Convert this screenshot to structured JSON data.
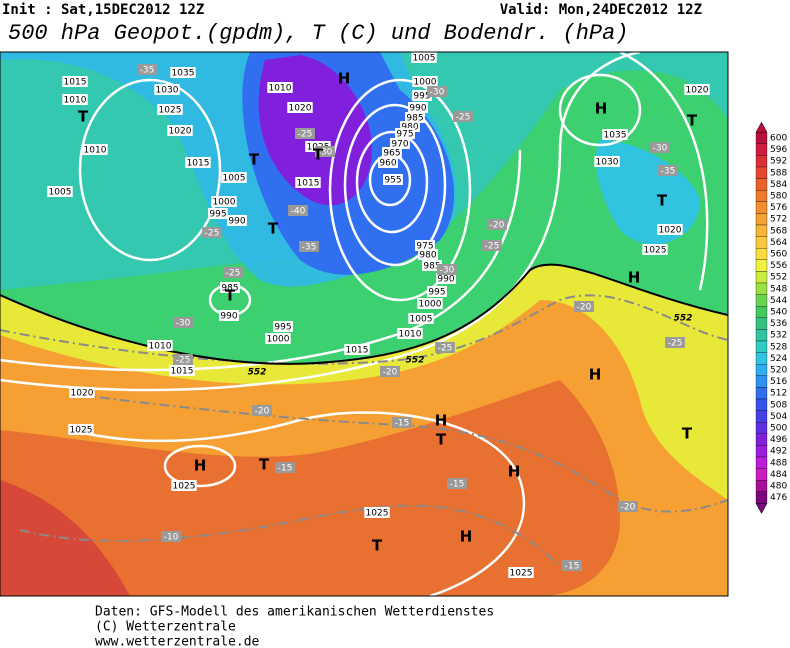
{
  "header": {
    "init": "Init : Sat,15DEC2012 12Z",
    "valid": "Valid: Mon,24DEC2012 12Z",
    "title": "500 hPa Geopot.(gpdm), T (C) und Bodendr. (hPa)"
  },
  "map": {
    "isobar_labels": [
      "1015",
      "1010",
      "1035",
      "1030",
      "1025",
      "1020",
      "1015",
      "1010",
      "1005",
      "1005",
      "1000",
      "995",
      "990",
      "1010",
      "1020",
      "1025",
      "1015",
      "1005",
      "1000",
      "995",
      "990",
      "985",
      "980",
      "975",
      "970",
      "965",
      "960",
      "955",
      "975",
      "980",
      "985",
      "990",
      "995",
      "1000",
      "1005",
      "1010",
      "1015",
      "985",
      "990",
      "995",
      "1000",
      "1010",
      "1015",
      "1020",
      "1025",
      "1025",
      "1025",
      "1025",
      "1035",
      "1030",
      "1020",
      "1025",
      "1020"
    ],
    "isotherm_labels": [
      "-35",
      "-30",
      "-25",
      "-25",
      "-30",
      "-40",
      "-25",
      "-35",
      "-25",
      "-30",
      "-25",
      "-20",
      "-25",
      "-30",
      "-20",
      "-25",
      "-20",
      "-20",
      "-15",
      "-15",
      "-15",
      "-10",
      "-15",
      "-20",
      "-30",
      "-35",
      "-25"
    ],
    "height_labels": [
      "552",
      "552",
      "552"
    ],
    "centers": [
      "H",
      "H",
      "T",
      "T",
      "T",
      "T",
      "T",
      "T",
      "T",
      "H",
      "H",
      "H",
      "T",
      "H",
      "H",
      "T",
      "T",
      "H",
      "T"
    ]
  },
  "colorbar": {
    "ticks": [
      600,
      596,
      592,
      588,
      584,
      580,
      576,
      572,
      568,
      564,
      560,
      556,
      552,
      548,
      544,
      540,
      536,
      532,
      528,
      524,
      520,
      516,
      512,
      508,
      504,
      500,
      496,
      492,
      488,
      484,
      480,
      476
    ],
    "colors": [
      "#b8103c",
      "#cc1c40",
      "#dc3038",
      "#e44830",
      "#ec602c",
      "#f0782c",
      "#f48c30",
      "#f6a034",
      "#f8b43a",
      "#f8c840",
      "#f8dc40",
      "#f0f040",
      "#c8ec40",
      "#98e044",
      "#68d450",
      "#44c860",
      "#34c080",
      "#30c4a0",
      "#30ccc0",
      "#30c4e0",
      "#30acf0",
      "#3090f0",
      "#3070f0",
      "#3454ec",
      "#4440e8",
      "#6030e0",
      "#8020dc",
      "#9c1cdc",
      "#bc1cd8",
      "#cc1cc0",
      "#a8109c",
      "#78087c"
    ]
  },
  "footer": {
    "line1": "Daten: GFS-Modell des amerikanischen Wetterdienstes",
    "line2": "(C) Wetterzentrale",
    "line3": "www.wetterzentrale.de"
  }
}
